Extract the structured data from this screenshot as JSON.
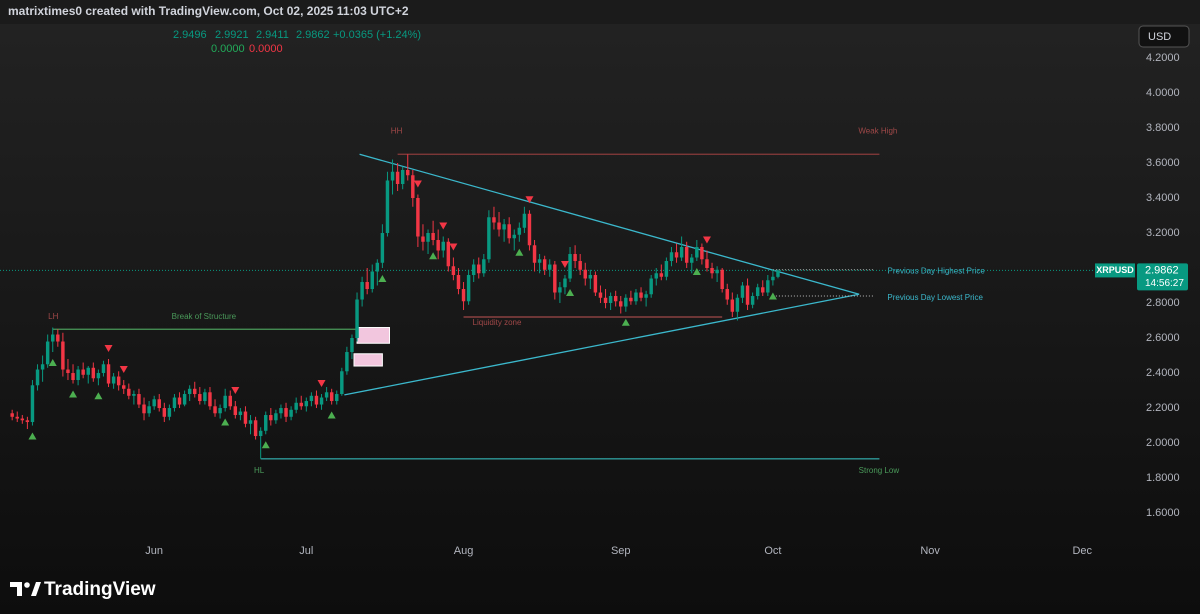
{
  "header": {
    "credit": "matrixtimes0 created with TradingView.com, Oct 02, 2025 11:03 UTC+2",
    "change": "+0.0365 (+1.24%)",
    "indicator_values": [
      "0.0000",
      "0.0000"
    ],
    "currency": "USD"
  },
  "chart_data": {
    "type": "candlestick",
    "symbol": "XRPUSD",
    "countdown": "14:56:27",
    "up_color": "#089981",
    "down_color": "#f23645",
    "candles": [
      [
        2.17,
        2.19,
        2.13,
        2.15
      ],
      [
        2.15,
        2.18,
        2.12,
        2.14
      ],
      [
        2.14,
        2.16,
        2.11,
        2.13
      ],
      [
        2.13,
        2.15,
        2.08,
        2.12
      ],
      [
        2.12,
        2.36,
        2.1,
        2.33
      ],
      [
        2.33,
        2.45,
        2.3,
        2.42
      ],
      [
        2.42,
        2.5,
        2.35,
        2.45
      ],
      [
        2.45,
        2.62,
        2.43,
        2.58
      ],
      [
        2.58,
        2.66,
        2.52,
        2.62
      ],
      [
        2.62,
        2.65,
        2.55,
        2.58
      ],
      [
        2.58,
        2.63,
        2.38,
        2.42
      ],
      [
        2.42,
        2.48,
        2.36,
        2.4
      ],
      [
        2.4,
        2.45,
        2.34,
        2.36
      ],
      [
        2.36,
        2.44,
        2.33,
        2.42
      ],
      [
        2.42,
        2.46,
        2.37,
        2.39
      ],
      [
        2.39,
        2.44,
        2.34,
        2.43
      ],
      [
        2.43,
        2.46,
        2.35,
        2.37
      ],
      [
        2.37,
        2.42,
        2.33,
        2.4
      ],
      [
        2.4,
        2.47,
        2.38,
        2.45
      ],
      [
        2.45,
        2.48,
        2.32,
        2.34
      ],
      [
        2.34,
        2.4,
        2.31,
        2.38
      ],
      [
        2.38,
        2.41,
        2.3,
        2.33
      ],
      [
        2.33,
        2.36,
        2.28,
        2.31
      ],
      [
        2.31,
        2.34,
        2.25,
        2.27
      ],
      [
        2.27,
        2.3,
        2.22,
        2.28
      ],
      [
        2.28,
        2.31,
        2.2,
        2.22
      ],
      [
        2.22,
        2.26,
        2.13,
        2.17
      ],
      [
        2.17,
        2.24,
        2.15,
        2.21
      ],
      [
        2.21,
        2.27,
        2.19,
        2.25
      ],
      [
        2.25,
        2.28,
        2.18,
        2.2
      ],
      [
        2.2,
        2.23,
        2.12,
        2.15
      ],
      [
        2.15,
        2.22,
        2.13,
        2.2
      ],
      [
        2.2,
        2.28,
        2.18,
        2.26
      ],
      [
        2.26,
        2.29,
        2.2,
        2.22
      ],
      [
        2.22,
        2.3,
        2.21,
        2.28
      ],
      [
        2.28,
        2.33,
        2.24,
        2.31
      ],
      [
        2.31,
        2.35,
        2.26,
        2.28
      ],
      [
        2.28,
        2.32,
        2.22,
        2.24
      ],
      [
        2.24,
        2.31,
        2.22,
        2.29
      ],
      [
        2.29,
        2.32,
        2.19,
        2.21
      ],
      [
        2.21,
        2.25,
        2.15,
        2.17
      ],
      [
        2.17,
        2.22,
        2.14,
        2.2
      ],
      [
        2.2,
        2.31,
        2.18,
        2.27
      ],
      [
        2.27,
        2.3,
        2.19,
        2.21
      ],
      [
        2.21,
        2.24,
        2.14,
        2.16
      ],
      [
        2.16,
        2.2,
        2.13,
        2.18
      ],
      [
        2.18,
        2.21,
        2.09,
        2.11
      ],
      [
        2.11,
        2.16,
        2.05,
        2.13
      ],
      [
        2.13,
        2.15,
        2.02,
        2.04
      ],
      [
        2.04,
        2.09,
        1.91,
        2.07
      ],
      [
        2.07,
        2.18,
        2.05,
        2.16
      ],
      [
        2.16,
        2.2,
        2.1,
        2.13
      ],
      [
        2.13,
        2.19,
        2.11,
        2.17
      ],
      [
        2.17,
        2.22,
        2.14,
        2.2
      ],
      [
        2.2,
        2.23,
        2.12,
        2.15
      ],
      [
        2.15,
        2.21,
        2.13,
        2.19
      ],
      [
        2.19,
        2.26,
        2.17,
        2.23
      ],
      [
        2.23,
        2.27,
        2.19,
        2.21
      ],
      [
        2.21,
        2.26,
        2.18,
        2.24
      ],
      [
        2.24,
        2.29,
        2.21,
        2.27
      ],
      [
        2.27,
        2.3,
        2.2,
        2.22
      ],
      [
        2.22,
        2.28,
        2.19,
        2.26
      ],
      [
        2.26,
        2.32,
        2.24,
        2.29
      ],
      [
        2.29,
        2.31,
        2.22,
        2.24
      ],
      [
        2.24,
        2.3,
        2.22,
        2.28
      ],
      [
        2.28,
        2.43,
        2.27,
        2.41
      ],
      [
        2.41,
        2.55,
        2.39,
        2.52
      ],
      [
        2.52,
        2.62,
        2.48,
        2.6
      ],
      [
        2.6,
        2.86,
        2.58,
        2.82
      ],
      [
        2.82,
        2.95,
        2.78,
        2.92
      ],
      [
        2.92,
        3.0,
        2.85,
        2.88
      ],
      [
        2.88,
        3.02,
        2.86,
        2.98
      ],
      [
        2.98,
        3.05,
        2.9,
        3.03
      ],
      [
        3.03,
        3.25,
        3.0,
        3.2
      ],
      [
        3.2,
        3.55,
        3.18,
        3.5
      ],
      [
        3.5,
        3.62,
        3.42,
        3.55
      ],
      [
        3.55,
        3.6,
        3.44,
        3.48
      ],
      [
        3.48,
        3.58,
        3.45,
        3.56
      ],
      [
        3.56,
        3.65,
        3.5,
        3.53
      ],
      [
        3.53,
        3.56,
        3.35,
        3.4
      ],
      [
        3.4,
        3.42,
        3.12,
        3.18
      ],
      [
        3.18,
        3.25,
        3.1,
        3.15
      ],
      [
        3.15,
        3.22,
        3.08,
        3.2
      ],
      [
        3.2,
        3.27,
        3.13,
        3.16
      ],
      [
        3.16,
        3.22,
        3.05,
        3.1
      ],
      [
        3.1,
        3.18,
        3.06,
        3.15
      ],
      [
        3.15,
        3.17,
        2.98,
        3.01
      ],
      [
        3.01,
        3.06,
        2.93,
        2.96
      ],
      [
        2.96,
        3.0,
        2.85,
        2.88
      ],
      [
        2.88,
        2.92,
        2.76,
        2.81
      ],
      [
        2.81,
        2.99,
        2.79,
        2.96
      ],
      [
        2.96,
        3.05,
        2.92,
        3.02
      ],
      [
        3.02,
        3.06,
        2.94,
        2.97
      ],
      [
        2.97,
        3.08,
        2.95,
        3.05
      ],
      [
        3.05,
        3.33,
        3.03,
        3.29
      ],
      [
        3.29,
        3.35,
        3.22,
        3.26
      ],
      [
        3.26,
        3.32,
        3.18,
        3.22
      ],
      [
        3.22,
        3.28,
        3.15,
        3.25
      ],
      [
        3.25,
        3.29,
        3.14,
        3.17
      ],
      [
        3.17,
        3.22,
        3.1,
        3.19
      ],
      [
        3.19,
        3.26,
        3.15,
        3.23
      ],
      [
        3.23,
        3.35,
        3.2,
        3.31
      ],
      [
        3.31,
        3.33,
        3.1,
        3.13
      ],
      [
        3.13,
        3.16,
        2.98,
        3.03
      ],
      [
        3.03,
        3.08,
        2.97,
        3.05
      ],
      [
        3.05,
        3.07,
        2.96,
        2.99
      ],
      [
        2.99,
        3.05,
        2.95,
        3.02
      ],
      [
        3.02,
        3.04,
        2.82,
        2.86
      ],
      [
        2.86,
        2.92,
        2.8,
        2.89
      ],
      [
        2.89,
        2.96,
        2.85,
        2.94
      ],
      [
        2.94,
        3.12,
        2.92,
        3.08
      ],
      [
        3.08,
        3.13,
        3.0,
        3.04
      ],
      [
        3.04,
        3.08,
        2.96,
        2.99
      ],
      [
        2.99,
        3.03,
        2.9,
        2.94
      ],
      [
        2.94,
        2.99,
        2.88,
        2.96
      ],
      [
        2.96,
        2.98,
        2.84,
        2.86
      ],
      [
        2.86,
        2.9,
        2.8,
        2.83
      ],
      [
        2.83,
        2.88,
        2.77,
        2.8
      ],
      [
        2.8,
        2.86,
        2.76,
        2.84
      ],
      [
        2.84,
        2.87,
        2.78,
        2.81
      ],
      [
        2.81,
        2.84,
        2.74,
        2.78
      ],
      [
        2.78,
        2.85,
        2.75,
        2.83
      ],
      [
        2.83,
        2.87,
        2.79,
        2.81
      ],
      [
        2.81,
        2.88,
        2.79,
        2.86
      ],
      [
        2.86,
        2.89,
        2.81,
        2.83
      ],
      [
        2.83,
        2.87,
        2.78,
        2.85
      ],
      [
        2.85,
        2.96,
        2.83,
        2.94
      ],
      [
        2.94,
        3.0,
        2.9,
        2.97
      ],
      [
        2.97,
        3.02,
        2.93,
        2.95
      ],
      [
        2.95,
        3.06,
        2.93,
        3.04
      ],
      [
        3.04,
        3.12,
        3.01,
        3.09
      ],
      [
        3.09,
        3.14,
        3.03,
        3.06
      ],
      [
        3.06,
        3.18,
        3.04,
        3.12
      ],
      [
        3.12,
        3.15,
        3.0,
        3.03
      ],
      [
        3.03,
        3.08,
        2.97,
        3.06
      ],
      [
        3.06,
        3.16,
        3.04,
        3.12
      ],
      [
        3.12,
        3.14,
        3.02,
        3.05
      ],
      [
        3.05,
        3.1,
        2.98,
        3.0
      ],
      [
        3.0,
        3.03,
        2.94,
        2.97
      ],
      [
        2.97,
        3.01,
        2.92,
        2.99
      ],
      [
        2.99,
        3.0,
        2.86,
        2.88
      ],
      [
        2.88,
        2.91,
        2.79,
        2.82
      ],
      [
        2.82,
        2.86,
        2.72,
        2.75
      ],
      [
        2.75,
        2.85,
        2.7,
        2.83
      ],
      [
        2.83,
        2.92,
        2.8,
        2.9
      ],
      [
        2.9,
        2.94,
        2.76,
        2.79
      ],
      [
        2.79,
        2.86,
        2.77,
        2.84
      ],
      [
        2.84,
        2.91,
        2.82,
        2.89
      ],
      [
        2.89,
        2.93,
        2.84,
        2.86
      ],
      [
        2.86,
        2.96,
        2.84,
        2.93
      ],
      [
        2.93,
        2.99,
        2.9,
        2.95
      ],
      [
        2.9496,
        2.9921,
        2.9411,
        2.9862
      ]
    ],
    "buy_signals": [
      4,
      8,
      12,
      17,
      42,
      50,
      63,
      73,
      83,
      100,
      110,
      121,
      135,
      150
    ],
    "sell_signals": [
      19,
      22,
      44,
      61,
      80,
      85,
      87,
      102,
      109,
      137
    ],
    "lines": [
      {
        "x": [
          76,
          171
        ],
        "y": [
          3.65,
          3.65
        ],
        "color": "#8a3b3b",
        "style": "solid"
      },
      {
        "x": [
          49,
          171
        ],
        "y": [
          1.91,
          1.91
        ],
        "color": "#2e9a9a",
        "style": "solid"
      },
      {
        "x": [
          8,
          68
        ],
        "y": [
          2.65,
          2.65
        ],
        "color": "#4a9a5a",
        "style": "solid"
      },
      {
        "x": [
          89,
          140
        ],
        "y": [
          2.72,
          2.72
        ],
        "color": "#a04848",
        "style": "solid"
      },
      {
        "x": [
          68.5,
          167
        ],
        "y": [
          3.65,
          2.85
        ],
        "color": "#3bb8cc",
        "style": "solid"
      },
      {
        "x": [
          65.5,
          167
        ],
        "y": [
          2.275,
          2.85
        ],
        "color": "#3bb8cc",
        "style": "solid"
      },
      {
        "x": [
          150,
          170
        ],
        "y": [
          2.99,
          2.99
        ],
        "color": "#bbbbbb",
        "style": "dotted"
      },
      {
        "x": [
          150,
          170
        ],
        "y": [
          2.84,
          2.84
        ],
        "color": "#bbbbbb",
        "style": "dotted"
      }
    ],
    "zones": [
      {
        "x": [
          68,
          74.4
        ],
        "y": [
          2.57,
          2.66
        ],
        "color": "#f2c6de"
      },
      {
        "x": [
          67.4,
          73
        ],
        "y": [
          2.44,
          2.51
        ],
        "color": "#f2c6de"
      }
    ],
    "annotations": [
      {
        "text": "HH",
        "x": 75.8,
        "y": 3.78,
        "color": "#a04848"
      },
      {
        "text": "Weak High",
        "x": 170.7,
        "y": 3.78,
        "color": "#a04848"
      },
      {
        "text": "LH",
        "x": 8.1,
        "y": 2.72,
        "color": "#a04848"
      },
      {
        "text": "Break of Structure",
        "x": 37.8,
        "y": 2.72,
        "color": "#4a9a5a"
      },
      {
        "text": "Liquidity zone",
        "x": 95.6,
        "y": 2.686,
        "color": "#a04848"
      },
      {
        "text": "Previous Day Highest Price",
        "x": 182.2,
        "y": 2.98,
        "color": "#3bb8cc"
      },
      {
        "text": "Previous Day Lowest Price",
        "x": 182,
        "y": 2.83,
        "color": "#3bb8cc"
      },
      {
        "text": "HL",
        "x": 48.7,
        "y": 1.84,
        "color": "#4a9a5a"
      },
      {
        "text": "Strong Low",
        "x": 170.9,
        "y": 1.84,
        "color": "#4a9a5a"
      }
    ],
    "xlim": [
      -2.4,
      221.4
    ],
    "xticks": [
      {
        "value": 28,
        "label": "Jun"
      },
      {
        "value": 58,
        "label": "Jul"
      },
      {
        "value": 89,
        "label": "Aug"
      },
      {
        "value": 120,
        "label": "Sep"
      },
      {
        "value": 150,
        "label": "Oct"
      },
      {
        "value": 181,
        "label": "Nov"
      },
      {
        "value": 211,
        "label": "Dec"
      }
    ],
    "ylim": [
      1.446,
      4.417
    ],
    "yticks": [
      {
        "value": 1.6,
        "label": "1.6000"
      },
      {
        "value": 1.8,
        "label": "1.8000"
      },
      {
        "value": 2.0,
        "label": "2.0000"
      },
      {
        "value": 2.2,
        "label": "2.2000"
      },
      {
        "value": 2.4,
        "label": "2.4000"
      },
      {
        "value": 2.6,
        "label": "2.6000"
      },
      {
        "value": 2.8,
        "label": "2.8000"
      },
      {
        "value": 3.2,
        "label": "3.2000"
      },
      {
        "value": 3.4,
        "label": "3.4000"
      },
      {
        "value": 3.6,
        "label": "3.6000"
      },
      {
        "value": 3.8,
        "label": "3.8000"
      },
      {
        "value": 4.0,
        "label": "4.0000"
      },
      {
        "value": 4.2,
        "label": "4.2000"
      }
    ]
  },
  "footer": {
    "logo": "TradingView"
  }
}
